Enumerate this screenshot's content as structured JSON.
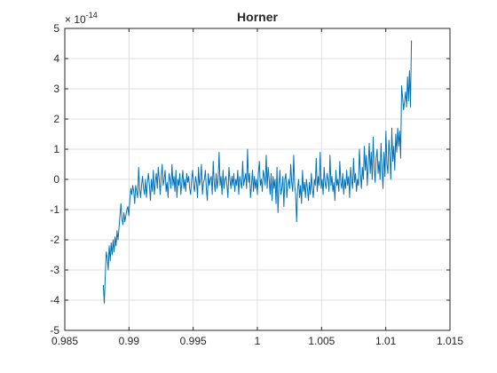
{
  "chart_data": {
    "type": "line",
    "title": "Horner",
    "xlabel": "",
    "ylabel": "",
    "y_exponent_label": "× 10",
    "y_exponent_power": "-14",
    "xlim": [
      0.985,
      1.015
    ],
    "ylim": [
      -5,
      5
    ],
    "x_ticks": [
      0.985,
      0.99,
      0.995,
      1,
      1.005,
      1.01,
      1.015
    ],
    "x_tick_labels": [
      "0.985",
      "0.99",
      "0.995",
      "1",
      "1.005",
      "1.01",
      "1.015"
    ],
    "y_ticks": [
      -5,
      -4,
      -3,
      -2,
      -1,
      0,
      1,
      2,
      3,
      4,
      5
    ],
    "y_tick_labels": [
      "-5",
      "-4",
      "-3",
      "-2",
      "-1",
      "0",
      "1",
      "2",
      "3",
      "4",
      "5"
    ],
    "grid": true,
    "line_color": "#0072bd",
    "x_range": [
      0.988,
      1.012
    ],
    "series": [
      {
        "y": [
          -3.5,
          -4.1,
          -3.2,
          -2.4,
          -2.6,
          -3.0,
          -2.2,
          -2.7,
          -2.1,
          -2.5,
          -2.0,
          -2.4,
          -1.9,
          -2.2,
          -1.7,
          -2.0,
          -1.6,
          -1.2,
          -0.8,
          -1.3,
          -1.5,
          -1.1,
          -1.4,
          -1.2,
          -1.0,
          -0.9,
          -1.2,
          -0.7,
          -0.3,
          -0.5,
          -0.2,
          -0.4,
          -0.8,
          -0.2,
          -0.4,
          -0.6,
          0.4,
          -0.3,
          -0.6,
          -0.2,
          0.1,
          -0.3,
          -0.5,
          0.0,
          -0.6,
          -0.1,
          0.2,
          -0.2,
          -0.7,
          0.0,
          -0.4,
          0.3,
          -0.5,
          -0.1,
          0.2,
          -0.3,
          0.4,
          0.0,
          -0.5,
          0.1,
          0.5,
          -0.2,
          0.0,
          0.3,
          -0.4,
          -0.1,
          -0.6,
          0.2,
          0.0,
          -0.3,
          0.5,
          -0.2,
          0.1,
          -0.4,
          0.3,
          -0.6,
          0.0,
          -0.2,
          0.2,
          -0.5,
          -0.1,
          0.3,
          -0.3,
          0.0,
          -0.4,
          0.2,
          -0.1,
          0.1,
          -0.3,
          -0.5,
          0.0,
          0.3,
          -0.2,
          -0.4,
          0.1,
          -0.1,
          -0.6,
          0.4,
          -0.2,
          0.0,
          0.5,
          -0.5,
          -0.1,
          0.0,
          0.3,
          -0.3,
          -0.7,
          0.2,
          -0.2,
          0.0,
          0.1,
          -0.5,
          0.6,
          -0.1,
          -0.4,
          0.2,
          -0.3,
          0.0,
          0.9,
          -0.2,
          0.1,
          -0.5,
          0.3,
          -0.3,
          0.0,
          0.1,
          -0.2,
          -0.6,
          0.4,
          0.0,
          -0.3,
          0.1,
          -0.2,
          0.2,
          -0.4,
          0.0,
          -0.2,
          0.3,
          -0.5,
          0.1,
          -0.1,
          -0.3,
          0.6,
          -0.2,
          0.0,
          0.2,
          -0.3,
          1.0,
          -0.1,
          0.2,
          -0.6,
          -0.2,
          0.3,
          -0.4,
          0.1,
          -0.3,
          0.0,
          -0.5,
          0.2,
          0.6,
          -0.2,
          0.0,
          -0.4,
          0.3,
          0.1,
          -0.2,
          0.8,
          -0.3,
          0.4,
          0.0,
          -0.5,
          0.2,
          -0.7,
          0.1,
          -0.3,
          0.0,
          -0.8,
          0.4,
          -1.1,
          -0.2,
          0.3,
          -0.5,
          -0.3,
          0.1,
          -0.9,
          0.0,
          0.2,
          -0.6,
          -0.2,
          0.0,
          -0.3,
          0.5,
          -0.1,
          -0.4,
          0.8,
          -0.2,
          -0.5,
          -1.4,
          -0.3,
          0.0,
          -0.6,
          -0.2,
          -0.8,
          0.3,
          -0.4,
          -0.1,
          -0.6,
          0.0,
          -0.3,
          -0.7,
          -0.1,
          -0.5,
          0.2,
          -0.3,
          -0.6,
          0.0,
          -0.2,
          0.7,
          -0.4,
          0.1,
          -0.2,
          0.9,
          -0.3,
          0.0,
          -0.5,
          0.4,
          -0.1,
          -0.3,
          0.2,
          0.0,
          -0.4,
          0.8,
          -0.2,
          0.1,
          -0.4,
          -0.1,
          -0.7,
          0.3,
          -0.2,
          0.0,
          -0.4,
          0.6,
          -0.1,
          -0.3,
          0.2,
          -0.5,
          0.0,
          -0.3,
          0.3,
          -0.2,
          0.1,
          -0.6,
          0.4,
          0.0,
          -0.3,
          0.7,
          -0.1,
          0.2,
          -0.4,
          0.0,
          -0.2,
          1.0,
          0.2,
          -0.3,
          0.4,
          0.0,
          1.1,
          0.3,
          0.8,
          -0.2,
          0.5,
          1.2,
          0.2,
          0.9,
          0.0,
          1.4,
          0.4,
          -0.1,
          0.7,
          1.0,
          0.2,
          0.6,
          0.0,
          1.2,
          0.4,
          -0.3,
          0.9,
          0.1,
          1.6,
          0.5,
          0.2,
          1.3,
          0.8,
          0.0,
          1.7,
          0.6,
          1.1,
          0.3,
          1.5,
          0.9,
          1.7,
          1.1,
          1.6,
          0.7,
          3.1,
          2.7,
          2.3,
          2.6,
          2.9,
          2.4,
          3.4,
          2.6,
          3.6,
          2.4,
          4.6
        ]
      }
    ]
  }
}
